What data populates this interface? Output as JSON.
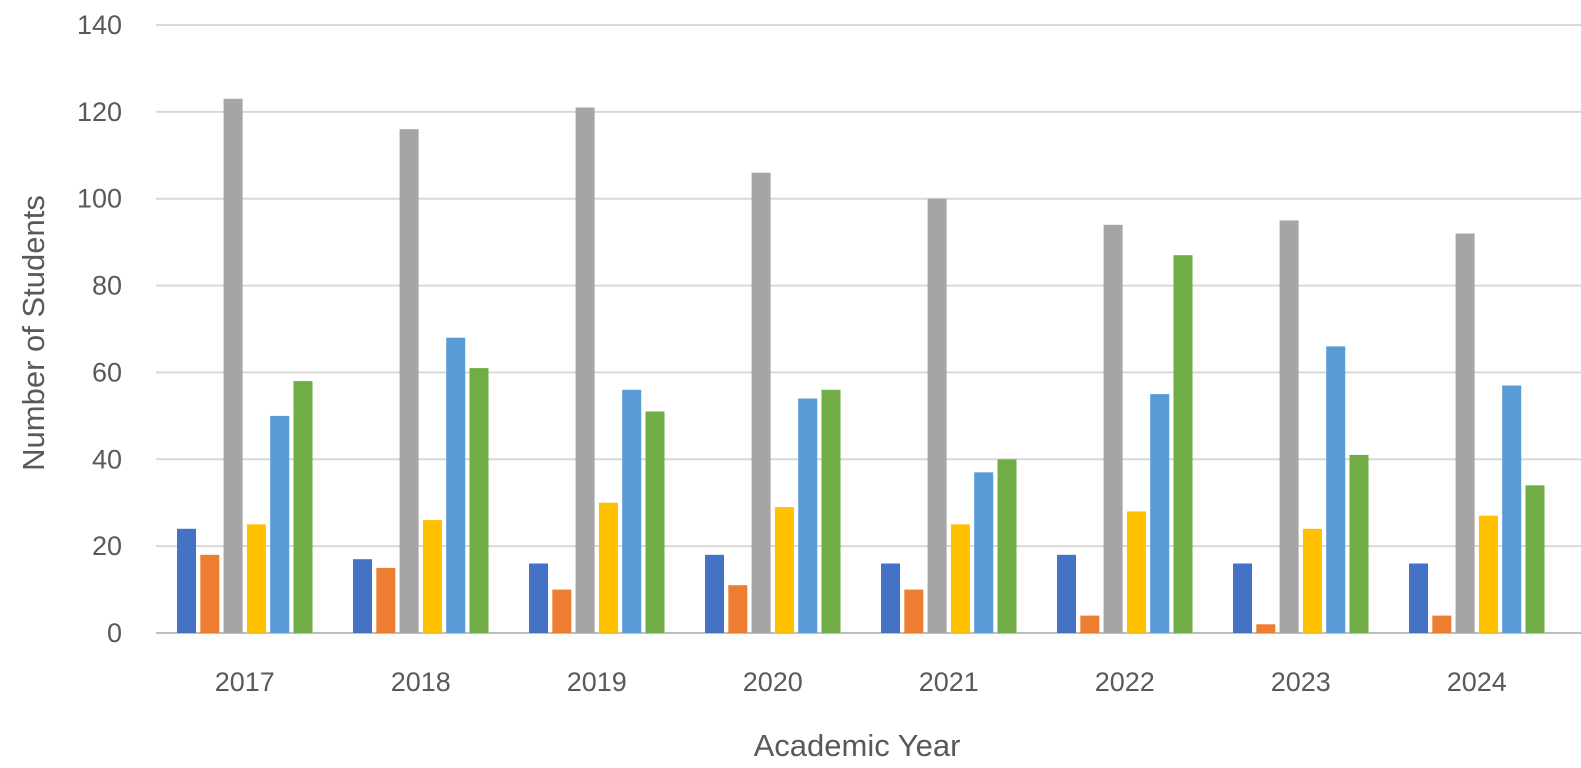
{
  "chart_data": {
    "type": "bar",
    "title": "",
    "xlabel": "Academic Year",
    "ylabel": "Number of Students",
    "categories": [
      "2017",
      "2018",
      "2019",
      "2020",
      "2021",
      "2022",
      "2023",
      "2024"
    ],
    "ylim": [
      0,
      140
    ],
    "yticks": [
      0,
      20,
      40,
      60,
      80,
      100,
      120,
      140
    ],
    "grid": true,
    "legend": "none",
    "series": [
      {
        "color": "#4472c4",
        "values": [
          24,
          17,
          16,
          18,
          16,
          18,
          16,
          16
        ]
      },
      {
        "color": "#ed7d31",
        "values": [
          18,
          15,
          10,
          11,
          10,
          4,
          2,
          4
        ]
      },
      {
        "color": "#a5a5a5",
        "values": [
          123,
          116,
          121,
          106,
          100,
          94,
          95,
          92
        ]
      },
      {
        "color": "#ffc000",
        "values": [
          25,
          26,
          30,
          29,
          25,
          28,
          24,
          27
        ]
      },
      {
        "color": "#5b9bd5",
        "values": [
          50,
          68,
          56,
          54,
          37,
          55,
          66,
          57
        ]
      },
      {
        "color": "#70ad47",
        "values": [
          58,
          61,
          51,
          56,
          40,
          87,
          41,
          34
        ]
      }
    ]
  }
}
